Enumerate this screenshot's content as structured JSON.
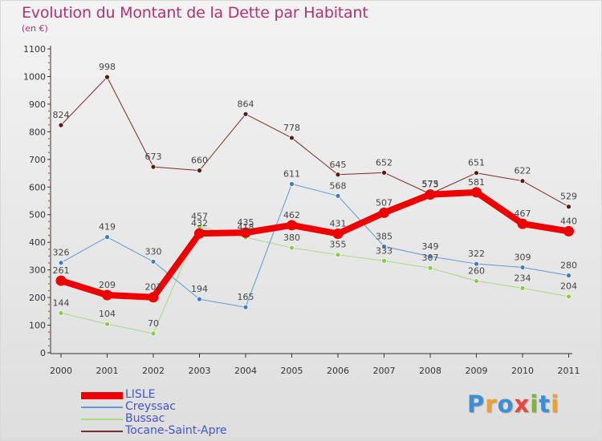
{
  "title": "Evolution du Montant de la Dette par Habitant",
  "unit": "(en €)",
  "logo": {
    "text": "Proxiti",
    "letter_colors": [
      "#3a8fd6",
      "#f0a02a",
      "#3a8fd6",
      "#e8473a",
      "#7ab82e",
      "#3a8fd6",
      "#f0a02a"
    ]
  },
  "chart_data": {
    "type": "line",
    "title": "Evolution du Montant de la Dette par Habitant",
    "xlabel": "",
    "ylabel": "(en €)",
    "x": [
      "2000",
      "2001",
      "2002",
      "2003",
      "2004",
      "2005",
      "2006",
      "2007",
      "2008",
      "2009",
      "2010",
      "2011"
    ],
    "ylim": [
      0,
      1100
    ],
    "yticks": [
      0,
      100,
      200,
      300,
      400,
      500,
      600,
      700,
      800,
      900,
      1000,
      1100
    ],
    "grid": false,
    "legend": "bottom-left",
    "series": [
      {
        "name": "Tocane-Saint-Apre",
        "color": "#7a2a2a",
        "marker": "#5a1a1a",
        "width": 1,
        "values": [
          824,
          998,
          673,
          660,
          864,
          778,
          645,
          652,
          575,
          651,
          622,
          529
        ]
      },
      {
        "name": "Bussac",
        "color": "#a5dc80",
        "marker": "#88cc44",
        "width": 1,
        "values": [
          144,
          104,
          70,
          457,
          418,
          380,
          355,
          333,
          307,
          260,
          234,
          204
        ]
      },
      {
        "name": "Creyssac",
        "color": "#5b9ad6",
        "marker": "#3a7dc9",
        "width": 1,
        "values": [
          326,
          419,
          330,
          194,
          165,
          611,
          568,
          385,
          349,
          322,
          309,
          280
        ]
      },
      {
        "name": "LISLE",
        "color": "#ee0000",
        "marker": "#ee0000",
        "width": 8,
        "values": [
          261,
          209,
          201,
          432,
          435,
          462,
          431,
          507,
          573,
          581,
          467,
          440
        ]
      }
    ],
    "legend_order": [
      "LISLE",
      "Creyssac",
      "Bussac",
      "Tocane-Saint-Apre"
    ]
  }
}
